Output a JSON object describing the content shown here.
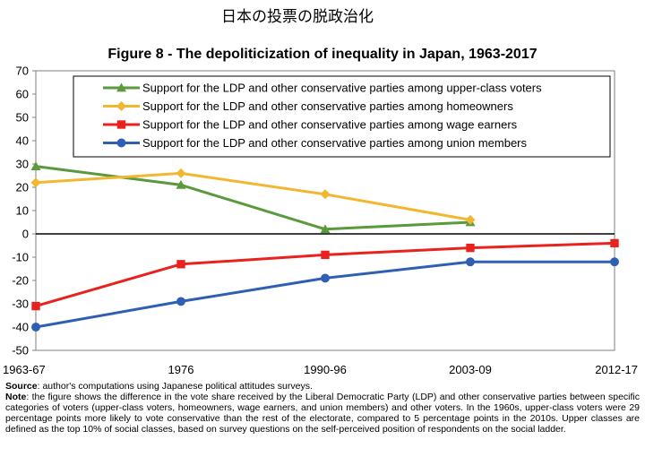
{
  "page_heading": "日本の投票の脱政治化",
  "chart_data": {
    "type": "line",
    "title": "Figure 8 - The depoliticization of inequality in Japan, 1963-2017",
    "categories": [
      "1963-67",
      "1976",
      "1990-96",
      "2003-09",
      "2012-17"
    ],
    "ylim": [
      -50,
      70
    ],
    "yticks": [
      70,
      60,
      50,
      40,
      30,
      20,
      10,
      0,
      -10,
      -20,
      -30,
      -40,
      -50
    ],
    "xlabel": "",
    "ylabel": "",
    "legend_position": "top",
    "series": [
      {
        "name": "Support for the LDP and other conservative parties among upper-class voters",
        "color": "#5a9a3c",
        "marker": "triangle",
        "values": [
          29,
          21,
          2,
          5,
          null
        ]
      },
      {
        "name": "Support for the LDP and other conservative parties among homeowners",
        "color": "#f2b731",
        "marker": "diamond",
        "values": [
          22,
          26,
          17,
          6,
          null
        ]
      },
      {
        "name": "Support for the LDP and other conservative parties among wage earners",
        "color": "#e8231f",
        "marker": "square",
        "values": [
          -31,
          -13,
          -9,
          -6,
          -4
        ]
      },
      {
        "name": "Support for the LDP and other conservative parties among union members",
        "color": "#2f5fb3",
        "marker": "circle",
        "values": [
          -40,
          -29,
          -19,
          -12,
          -12
        ]
      }
    ]
  },
  "notes": {
    "source_label": "Source",
    "source_text": ": author's computations using Japanese political attitudes surveys.",
    "note_label": "Note",
    "note_text": ": the figure shows the difference in the vote share received by the Liberal Democratic Party (LDP) and other conservative parties between specific categories of voters (upper-class voters, homeowners, wage earners, and union members) and other voters. In the 1960s, upper-class voters were 29 percentage points more likely to vote conservative than the rest of the electorate, compared to 5 percentage points in the 2010s. Upper classes are defined as the top 10% of social classes, based on survey questions on the self-perceived position of respondents on the social ladder."
  }
}
